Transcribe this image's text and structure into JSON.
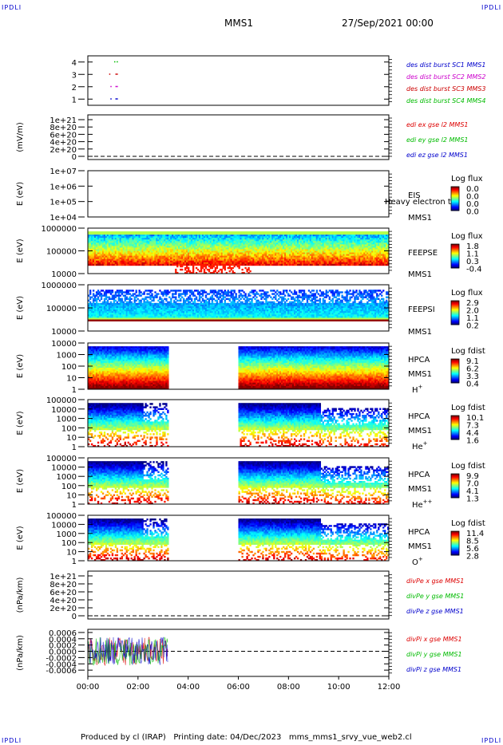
{
  "corner_labels": {
    "tl": "IPDLI",
    "tr": "IPDLI",
    "bl": "IPDLI",
    "br": "IPDLI"
  },
  "header": {
    "mission": "MMS1",
    "datetime": "27/Sep/2021 00:00"
  },
  "footer": {
    "text": "Produced by cl (IRAP)   Printing date: 04/Dec/2023   mms_mms1_srvy_vue_web2.cl"
  },
  "colors": {
    "mms1": "#0000cc",
    "mms2": "#cc00cc",
    "mms3": "#cc0000",
    "mms4": "#00bb00",
    "red": "#dd0000",
    "green": "#00bb00",
    "blue": "#0000cc"
  },
  "chart_data": [
    {
      "type": "scatter",
      "id": "burst",
      "ylim": [
        0.5,
        4.5
      ],
      "yticks": [
        "1",
        "2",
        "3",
        "4"
      ],
      "legend": [
        {
          "name": "des dist burst SC1 MMS1",
          "color": "#0000cc"
        },
        {
          "name": "des dist burst SC2 MMS2",
          "color": "#cc00cc"
        },
        {
          "name": "des dist burst SC3 MMS3",
          "color": "#cc0000"
        },
        {
          "name": "des dist burst SC4 MMS4",
          "color": "#00bb00"
        }
      ],
      "series": [
        {
          "name": "des dist burst SC1 MMS1",
          "y": 1,
          "x": [
            0.9,
            1.1,
            1.15
          ]
        },
        {
          "name": "des dist burst SC2 MMS2",
          "y": 2,
          "x": [
            0.9,
            1.1,
            1.15
          ]
        },
        {
          "name": "des dist burst SC3 MMS3",
          "y": 3,
          "x": [
            0.85,
            1.1,
            1.15
          ]
        },
        {
          "name": "des dist burst SC4 MMS4",
          "y": 4,
          "x": [
            1.05,
            1.15
          ]
        }
      ]
    },
    {
      "type": "line",
      "id": "edi",
      "ylabel": "(mV/m)",
      "yticks": [
        "0",
        "2e+20",
        "4e+20",
        "6e+20",
        "8e+20",
        "1e+21"
      ],
      "legend": [
        {
          "name": "edi ex gse l2 MMS1",
          "color": "#dd0000"
        },
        {
          "name": "edi ey gse l2 MMS1",
          "color": "#00bb00"
        },
        {
          "name": "edi ez gse l2 MMS1",
          "color": "#0000cc"
        }
      ]
    },
    {
      "type": "heatmap",
      "id": "eis",
      "ylabel": "E (eV)",
      "yticks": [
        "1e+04",
        "1e+05",
        "1e+06",
        "1e+07"
      ],
      "instrument": "EIS",
      "overlay": "Heavy electron to",
      "spacecraft": "MMS1",
      "colorbar": {
        "title": "Log flux",
        "ticks": [
          "0.0",
          "0.0",
          "0.0",
          "0.0"
        ]
      }
    },
    {
      "type": "heatmap",
      "id": "feepse",
      "ylabel": "E (eV)",
      "yticks": [
        "10000",
        "100000",
        "1000000"
      ],
      "instrument": "FEEPSE",
      "spacecraft": "MMS1",
      "colorbar": {
        "title": "Log flux",
        "ticks": [
          "1.8",
          "1.1",
          "0.3",
          "-0.4"
        ]
      }
    },
    {
      "type": "heatmap",
      "id": "feepsi",
      "ylabel": "E (eV)",
      "yticks": [
        "10000",
        "100000",
        "1000000"
      ],
      "instrument": "FEEPSI",
      "spacecraft": "MMS1",
      "colorbar": {
        "title": "Log flux",
        "ticks": [
          "2.9",
          "2.0",
          "1.1",
          "0.2"
        ]
      }
    },
    {
      "type": "heatmap",
      "id": "hpca_h",
      "ylabel": "E (eV)",
      "yticks": [
        "1",
        "10",
        "100",
        "1000",
        "10000"
      ],
      "instrument": "HPCA",
      "spacecraft": "MMS1",
      "species": "H",
      "charge": "+",
      "data_gaps": [
        [
          3.2,
          6.0
        ]
      ],
      "colorbar": {
        "title": "Log fdist",
        "ticks": [
          "9.1",
          "6.2",
          "3.3",
          "0.4"
        ]
      }
    },
    {
      "type": "heatmap",
      "id": "hpca_he",
      "ylabel": "E (eV)",
      "yticks": [
        "1",
        "10",
        "100",
        "1000",
        "10000",
        "100000"
      ],
      "instrument": "HPCA",
      "spacecraft": "MMS1",
      "species": "He",
      "charge": "+",
      "data_gaps": [
        [
          3.2,
          6.0
        ]
      ],
      "colorbar": {
        "title": "Log fdist",
        "ticks": [
          "10.1",
          "7.3",
          "4.4",
          "1.6"
        ]
      }
    },
    {
      "type": "heatmap",
      "id": "hpca_hepp",
      "ylabel": "E (eV)",
      "yticks": [
        "1",
        "10",
        "100",
        "1000",
        "10000",
        "100000"
      ],
      "instrument": "HPCA",
      "spacecraft": "MMS1",
      "species": "He",
      "charge": "++",
      "data_gaps": [
        [
          3.2,
          6.0
        ]
      ],
      "colorbar": {
        "title": "Log fdist",
        "ticks": [
          "9.9",
          "7.0",
          "4.1",
          "1.3"
        ]
      }
    },
    {
      "type": "heatmap",
      "id": "hpca_o",
      "ylabel": "E (eV)",
      "yticks": [
        "1",
        "10",
        "100",
        "1000",
        "10000",
        "100000"
      ],
      "instrument": "HPCA",
      "spacecraft": "MMS1",
      "species": "O",
      "charge": "+",
      "data_gaps": [
        [
          3.2,
          6.0
        ]
      ],
      "colorbar": {
        "title": "Log fdist",
        "ticks": [
          "11.4",
          "8.5",
          "5.6",
          "2.8"
        ]
      }
    },
    {
      "type": "line",
      "id": "divpe",
      "ylabel": "(nPa/km)",
      "yticks": [
        "0",
        "2e+20",
        "4e+20",
        "6e+20",
        "8e+20",
        "1e+21"
      ],
      "legend": [
        {
          "name": "divPe x gse MMS1",
          "color": "#dd0000"
        },
        {
          "name": "divPe y gse MMS1",
          "color": "#00bb00"
        },
        {
          "name": "divPe z gse MMS1",
          "color": "#0000cc"
        }
      ]
    },
    {
      "type": "line",
      "id": "divpi",
      "ylabel": "(nPa/km)",
      "ylim": [
        -0.0008,
        0.0007
      ],
      "yticks": [
        "-0.0006",
        "-0.0004",
        "-0.0002",
        "0.0000",
        "0.0002",
        "0.0004",
        "0.0006"
      ],
      "yvalues": [
        -0.0006,
        -0.0004,
        -0.0002,
        0.0,
        0.0002,
        0.0004,
        0.0006
      ],
      "data_range_hours": [
        0,
        3.2
      ],
      "legend": [
        {
          "name": "divPi x gse MMS1",
          "color": "#dd0000"
        },
        {
          "name": "divPi y gse MMS1",
          "color": "#00bb00"
        },
        {
          "name": "divPi z gse MMS1",
          "color": "#0000cc"
        }
      ]
    }
  ],
  "x_axis": {
    "xlim_hours": [
      0,
      12
    ],
    "ticks": [
      "00:00",
      "02:00",
      "04:00",
      "06:00",
      "08:00",
      "10:00",
      "12:00"
    ]
  }
}
